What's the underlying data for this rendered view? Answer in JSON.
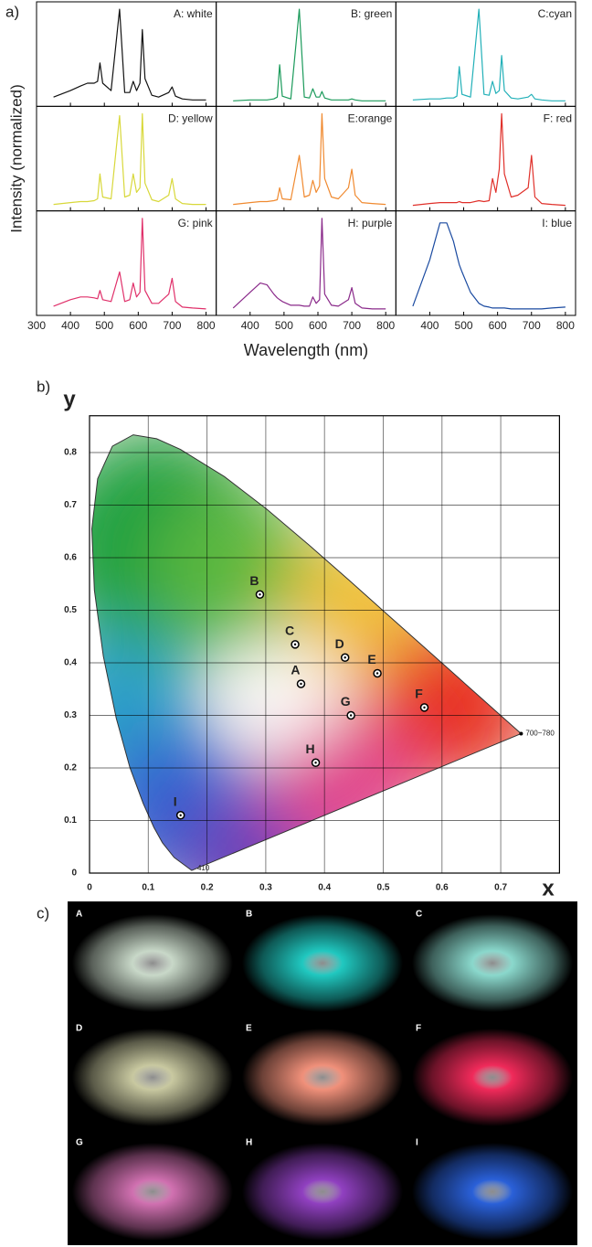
{
  "panel_labels": [
    "a)",
    "b)",
    "c)"
  ],
  "chart_data": [
    {
      "type": "line",
      "xlabel": "Wavelength (nm)",
      "ylabel": "Intensity (normalized)",
      "x": [
        350,
        400,
        430,
        450,
        470,
        480,
        487,
        495,
        520,
        545,
        560,
        575,
        585,
        595,
        605,
        612,
        620,
        640,
        660,
        690,
        700,
        710,
        730,
        760,
        800
      ],
      "xlim": [
        300,
        830
      ],
      "ylim": [
        -0.05,
        1.08
      ],
      "xticks": [
        400,
        500,
        600,
        700,
        800
      ],
      "panels": [
        {
          "title": "A: white",
          "color": "#111111",
          "values": [
            0.05,
            0.12,
            0.17,
            0.2,
            0.2,
            0.22,
            0.42,
            0.2,
            0.12,
            1.0,
            0.1,
            0.1,
            0.22,
            0.12,
            0.2,
            0.78,
            0.25,
            0.07,
            0.05,
            0.1,
            0.16,
            0.06,
            0.03,
            0.02,
            0.02
          ]
        },
        {
          "title": "B: green",
          "color": "#1a9a5a",
          "values": [
            0.01,
            0.02,
            0.02,
            0.02,
            0.03,
            0.05,
            0.4,
            0.06,
            0.03,
            1.0,
            0.05,
            0.04,
            0.14,
            0.05,
            0.05,
            0.11,
            0.04,
            0.02,
            0.02,
            0.02,
            0.03,
            0.02,
            0.01,
            0.01,
            0.01
          ]
        },
        {
          "title": "C:cyan",
          "color": "#22b0b8",
          "values": [
            0.02,
            0.03,
            0.03,
            0.04,
            0.04,
            0.06,
            0.38,
            0.08,
            0.05,
            1.0,
            0.08,
            0.07,
            0.22,
            0.09,
            0.12,
            0.5,
            0.12,
            0.04,
            0.03,
            0.05,
            0.08,
            0.03,
            0.02,
            0.01,
            0.01
          ]
        },
        {
          "title": "D: yellow",
          "color": "#d8d83a",
          "values": [
            0.02,
            0.04,
            0.05,
            0.05,
            0.06,
            0.08,
            0.35,
            0.1,
            0.08,
            0.98,
            0.1,
            0.12,
            0.35,
            0.15,
            0.2,
            1.0,
            0.25,
            0.07,
            0.05,
            0.12,
            0.3,
            0.08,
            0.03,
            0.02,
            0.02
          ]
        },
        {
          "title": "E:orange",
          "color": "#f08a30",
          "values": [
            0.02,
            0.04,
            0.05,
            0.05,
            0.06,
            0.07,
            0.2,
            0.08,
            0.07,
            0.55,
            0.1,
            0.12,
            0.28,
            0.15,
            0.22,
            1.0,
            0.3,
            0.1,
            0.08,
            0.2,
            0.4,
            0.12,
            0.04,
            0.03,
            0.02
          ]
        },
        {
          "title": "F: red",
          "color": "#e0302a",
          "values": [
            0.01,
            0.03,
            0.04,
            0.04,
            0.04,
            0.04,
            0.05,
            0.04,
            0.04,
            0.06,
            0.05,
            0.06,
            0.3,
            0.15,
            0.4,
            1.0,
            0.35,
            0.1,
            0.12,
            0.2,
            0.55,
            0.1,
            0.03,
            0.02,
            0.01
          ]
        },
        {
          "title": "G: pink",
          "color": "#e0306a",
          "xticks": [
            300,
            400,
            500,
            600,
            700,
            800
          ],
          "values": [
            0.05,
            0.12,
            0.15,
            0.15,
            0.14,
            0.13,
            0.22,
            0.12,
            0.1,
            0.42,
            0.1,
            0.12,
            0.3,
            0.15,
            0.2,
            1.0,
            0.22,
            0.08,
            0.08,
            0.18,
            0.35,
            0.1,
            0.04,
            0.03,
            0.02
          ]
        },
        {
          "title": "H: purple",
          "color": "#8a2a8a",
          "values": [
            0.03,
            0.2,
            0.3,
            0.28,
            0.18,
            0.14,
            0.12,
            0.1,
            0.06,
            0.06,
            0.05,
            0.05,
            0.15,
            0.08,
            0.12,
            1.0,
            0.18,
            0.06,
            0.05,
            0.12,
            0.25,
            0.08,
            0.03,
            0.02,
            0.02
          ]
        },
        {
          "title": "I: blue",
          "color": "#1a4aa0",
          "values": [
            0.05,
            0.55,
            0.95,
            0.95,
            0.75,
            0.6,
            0.5,
            0.42,
            0.2,
            0.08,
            0.05,
            0.04,
            0.03,
            0.03,
            0.03,
            0.03,
            0.03,
            0.02,
            0.02,
            0.02,
            0.02,
            0.02,
            0.02,
            0.03,
            0.04
          ]
        }
      ]
    },
    {
      "type": "scatter",
      "xlabel": "x",
      "ylabel": "y",
      "xlim": [
        0,
        0.8
      ],
      "ylim": [
        0,
        0.87
      ],
      "xticks": [
        0,
        0.1,
        0.2,
        0.3,
        0.4,
        0.5,
        0.6,
        0.7
      ],
      "yticks": [
        0,
        0.1,
        0.2,
        0.3,
        0.4,
        0.5,
        0.6,
        0.7,
        0.8
      ],
      "grid": true,
      "labels": [
        "A",
        "B",
        "C",
        "D",
        "E",
        "F",
        "G",
        "H",
        "I"
      ],
      "x": [
        0.36,
        0.29,
        0.35,
        0.435,
        0.49,
        0.57,
        0.445,
        0.385,
        0.155
      ],
      "y": [
        0.36,
        0.53,
        0.435,
        0.41,
        0.38,
        0.315,
        0.3,
        0.21,
        0.11
      ],
      "annotations": [
        "700~780",
        "410"
      ]
    }
  ],
  "photos": {
    "labels": [
      "A",
      "B",
      "C",
      "D",
      "E",
      "F",
      "G",
      "H",
      "I"
    ],
    "colors": [
      "#c8d8c8",
      "#20c8c0",
      "#8ad8cc",
      "#c8c8a0",
      "#f0907a",
      "#f02a5a",
      "#d070b0",
      "#9040c0",
      "#2a60d8"
    ]
  }
}
